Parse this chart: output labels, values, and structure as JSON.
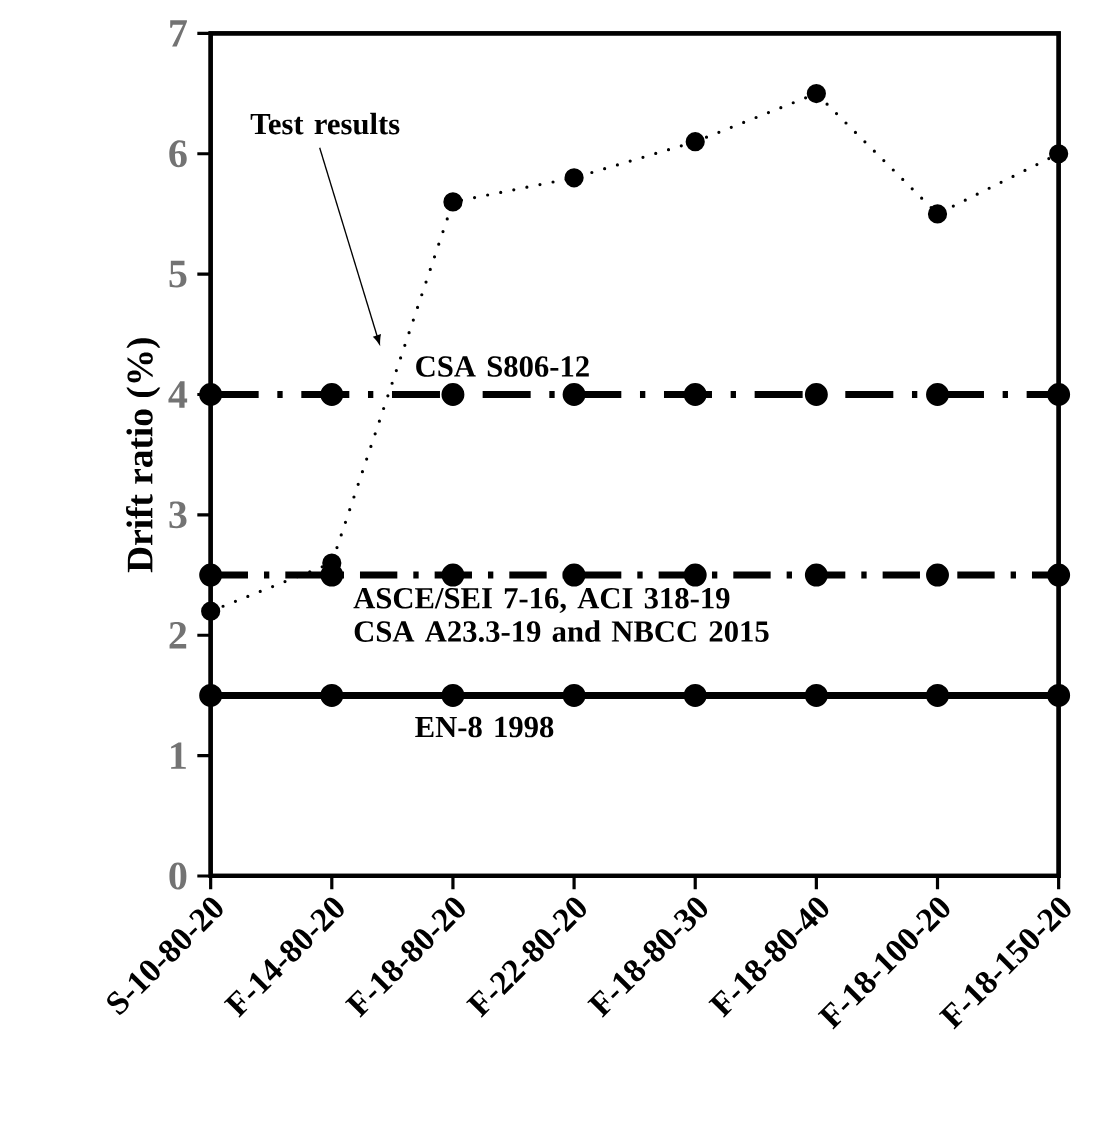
{
  "chart_data": {
    "type": "line",
    "ylabel": "Drift ratio (%)",
    "categories": [
      "S-10-80-20",
      "F-14-80-20",
      "F-18-80-20",
      "F-22-80-20",
      "F-18-80-30",
      "F-18-80-40",
      "F-18-100-20",
      "F-18-150-20"
    ],
    "series": [
      {
        "name": "Test results",
        "color": "#000000",
        "line_style": "dotted",
        "values": [
          2.2,
          2.6,
          5.6,
          5.8,
          6.1,
          6.5,
          5.5,
          6.0
        ]
      },
      {
        "name": "CSA S806-12",
        "color": "#000000",
        "line_style": "dashdot",
        "values": [
          4,
          4,
          4,
          4,
          4,
          4,
          4,
          4
        ]
      },
      {
        "name": "ASCE/SEI 7-16, ACI 318-19 CSA A23.3-19 and NBCC 2015",
        "color": "#000000",
        "line_style": "dashed",
        "values": [
          2.5,
          2.5,
          2.5,
          2.5,
          2.5,
          2.5,
          2.5,
          2.5
        ]
      },
      {
        "name": "EN-8 1998",
        "color": "#000000",
        "line_style": "solid",
        "values": [
          1.5,
          1.5,
          1.5,
          1.5,
          1.5,
          1.5,
          1.5,
          1.5
        ]
      }
    ],
    "ylim": [
      0,
      7
    ],
    "yticks": [
      0,
      1,
      2,
      3,
      4,
      5,
      6,
      7
    ],
    "marker": "circle",
    "grid": false,
    "legend": false
  }
}
